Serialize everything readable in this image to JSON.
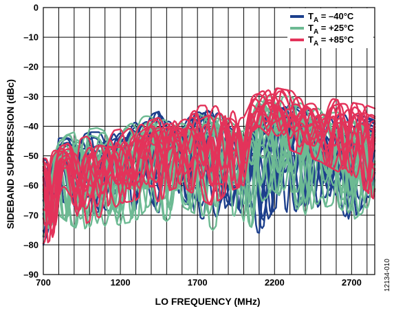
{
  "figure_id": "12134-010",
  "chart_data": {
    "type": "line",
    "title": "",
    "xlabel": "LO FREQUENCY (MHz)",
    "ylabel": "SIDEBAND SUPPRESSION (dBc)",
    "xlim": [
      700,
      2850
    ],
    "ylim": [
      -90,
      0
    ],
    "x_ticks": [
      700,
      1200,
      1700,
      2200,
      2700
    ],
    "y_ticks": [
      0,
      -10,
      -20,
      -30,
      -40,
      -50,
      -60,
      -70,
      -80,
      -90
    ],
    "x_tick_labels": [
      "700",
      "1200",
      "1700",
      "2200",
      "2700"
    ],
    "y_tick_labels": [
      "0",
      "–10",
      "–20",
      "–30",
      "–40",
      "–50",
      "–60",
      "–70",
      "–80",
      "–90"
    ],
    "grid": true,
    "legend_position": "top-right",
    "legend": [
      {
        "label_main": "T",
        "label_sub": "A",
        "label_rest": " = –40°C",
        "color": "#1c3f8c"
      },
      {
        "label_main": "T",
        "label_sub": "A",
        "label_rest": " = +25°C",
        "color": "#6dba93"
      },
      {
        "label_main": "T",
        "label_sub": "A",
        "label_rest": " = +85°C",
        "color": "#e3335a"
      }
    ],
    "envelope_x": [
      700,
      800,
      900,
      1000,
      1100,
      1200,
      1300,
      1400,
      1450,
      1500,
      1600,
      1700,
      1800,
      1900,
      2000,
      2050,
      2100,
      2200,
      2300,
      2400,
      2500,
      2600,
      2700,
      2800,
      2850
    ],
    "series": [
      {
        "name": "T_A = –40°C",
        "color": "#1c3f8c",
        "upper": [
          -52,
          -44,
          -44,
          -42,
          -42,
          -40,
          -38,
          -36,
          -35,
          -37,
          -38,
          -34,
          -35,
          -37,
          -40,
          -38,
          -40,
          -33,
          -33,
          -34,
          -35,
          -36,
          -36,
          -37,
          -38
        ],
        "lower": [
          -80,
          -65,
          -67,
          -70,
          -68,
          -70,
          -68,
          -65,
          -70,
          -66,
          -64,
          -70,
          -74,
          -66,
          -70,
          -75,
          -76,
          -68,
          -70,
          -72,
          -66,
          -68,
          -72,
          -65,
          -60
        ]
      },
      {
        "name": "T_A = +25°C",
        "color": "#6dba93",
        "upper": [
          -50,
          -44,
          -42,
          -41,
          -40,
          -40,
          -37,
          -36,
          -38,
          -37,
          -38,
          -34,
          -34,
          -38,
          -40,
          -35,
          -30,
          -30,
          -30,
          -32,
          -33,
          -35,
          -36,
          -38,
          -40
        ],
        "lower": [
          -77,
          -70,
          -74,
          -76,
          -76,
          -73,
          -72,
          -66,
          -70,
          -72,
          -67,
          -70,
          -75,
          -69,
          -72,
          -74,
          -66,
          -62,
          -66,
          -70,
          -68,
          -66,
          -72,
          -68,
          -66
        ]
      },
      {
        "name": "T_A = +85°C",
        "color": "#e3335a",
        "upper": [
          -48,
          -47,
          -45,
          -43,
          -42,
          -41,
          -39,
          -38,
          -37,
          -36,
          -35,
          -33,
          -33,
          -34,
          -35,
          -30,
          -28,
          -27,
          -28,
          -29,
          -30,
          -31,
          -32,
          -33,
          -34
        ],
        "lower": [
          -81,
          -75,
          -76,
          -72,
          -70,
          -66,
          -65,
          -60,
          -68,
          -62,
          -60,
          -64,
          -67,
          -62,
          -60,
          -42,
          -40,
          -45,
          -48,
          -50,
          -52,
          -55,
          -58,
          -62,
          -65
        ]
      }
    ]
  }
}
